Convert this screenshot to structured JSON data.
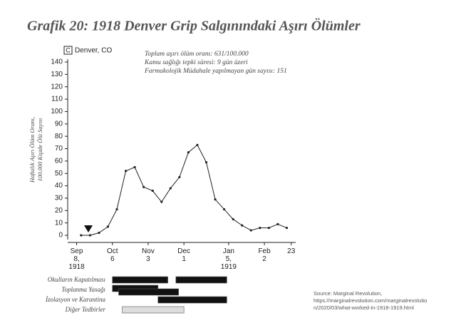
{
  "chart_data": {
    "type": "line",
    "title": "Grafik 20: 1918 Denver Grip Salgınındaki  Aşırı Ölümler",
    "panel_letter": "C",
    "panel_name": "Denver, CO",
    "annotations": [
      "Toplam aşırı ölüm oranı: 631/100.000",
      "Kamu sağlığı tepki süresi: 9 gün üzeri",
      "Farmakolojik Müdahale yapılmayan gün sayısı: 151"
    ],
    "y_label": [
      "Haftalık Aşırı Ölüm Oranı,",
      "100.000 Kişide Ölü Sayısı"
    ],
    "xlim": [
      -1,
      24.5
    ],
    "xticks": [
      {
        "value": 0,
        "label": "Sep 8, 1918"
      },
      {
        "value": 4,
        "label": "Oct 6"
      },
      {
        "value": 8,
        "label": "Nov 3"
      },
      {
        "value": 12,
        "label": "Dec 1"
      },
      {
        "value": 17,
        "label": "Jan 5, 1919"
      },
      {
        "value": 21,
        "label": "Feb 2"
      },
      {
        "value": 24,
        "label": "23"
      }
    ],
    "ylim": [
      0,
      140
    ],
    "yticks": [
      0,
      10,
      20,
      30,
      40,
      50,
      60,
      70,
      80,
      90,
      100,
      110,
      120,
      130,
      140
    ],
    "series": [
      {
        "color": "#222222",
        "x": [
          0.5,
          1.5,
          2.5,
          3.5,
          4.5,
          5.5,
          6.5,
          7.5,
          8.5,
          9.5,
          10.5,
          11.5,
          12.5,
          13.5,
          14.5,
          15.5,
          16.5,
          17.5,
          18.5,
          19.5,
          20.5,
          21.5,
          22.5,
          23.5
        ],
        "values": [
          0,
          0,
          2,
          7,
          21,
          52,
          55,
          39,
          36,
          27,
          38,
          47,
          67,
          73,
          59,
          29,
          21,
          13,
          8,
          4,
          6,
          6,
          9,
          6
        ]
      }
    ],
    "interventions": [
      {
        "name": "Okulların Kapatılması",
        "color": "#111111",
        "spans": [
          [
            4,
            10.2
          ],
          [
            11.1,
            16.8
          ]
        ]
      },
      {
        "name": "Toplanma Yasağı",
        "color": "#111111",
        "spans": [
          [
            4,
            9.1
          ],
          [
            4.7,
            11.4
          ]
        ]
      },
      {
        "name": "İzolasyon ve Karantina",
        "color": "#111111",
        "spans": [
          [
            9.1,
            16.8
          ]
        ]
      },
      {
        "name": "Diğer Tedbirler",
        "color": "#dddddd",
        "spans": [
          [
            5.1,
            12
          ]
        ]
      }
    ],
    "source": [
      "Source: Marginal Revolution,",
      "https://marginalrevolution.com/marginalrevolutio",
      "n/2020/03/what-worked-in-1918-1919.html"
    ]
  }
}
